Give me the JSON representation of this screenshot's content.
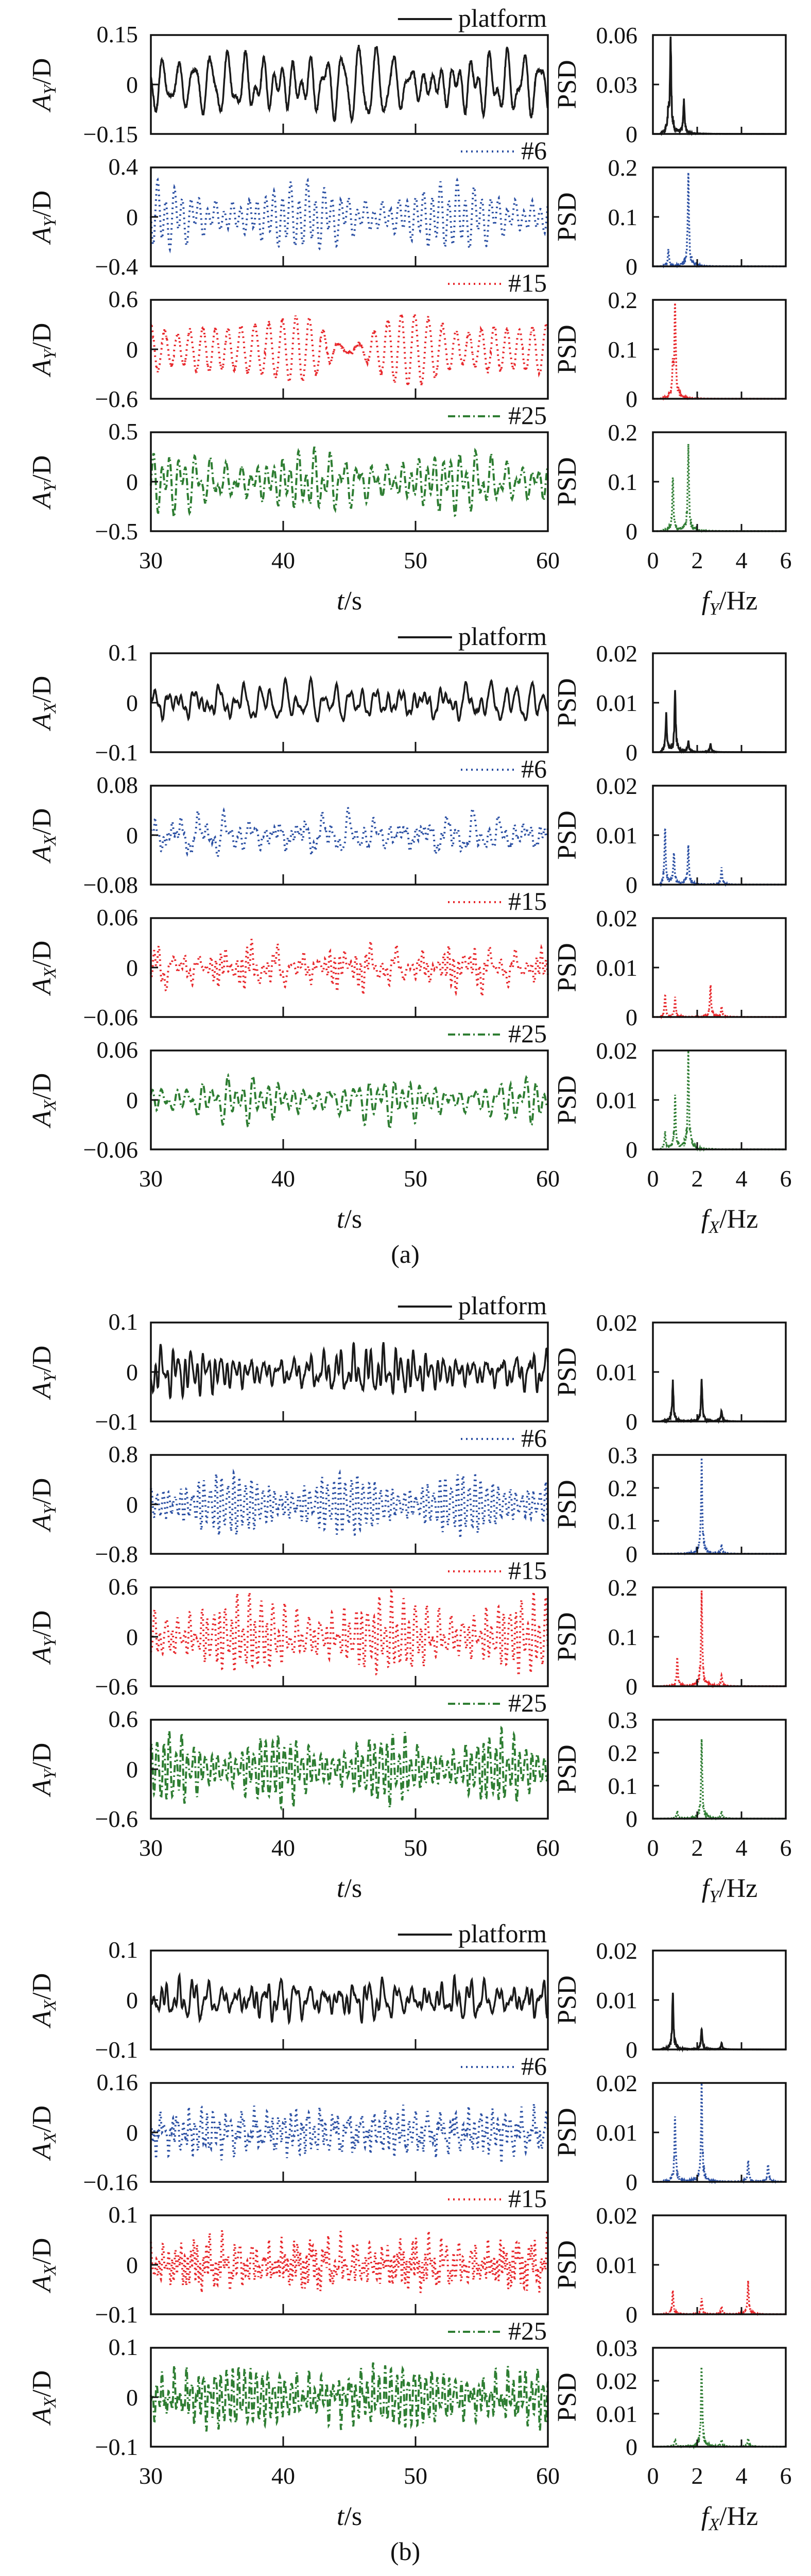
{
  "chart_data": [
    {
      "type": "line",
      "subfigure": "",
      "xlabel": {
        "main": "t",
        "sub": "",
        "rest": "/s"
      },
      "xlim": [
        30,
        60
      ],
      "xticks": [
        30,
        40,
        50,
        60
      ],
      "psd_xlabel": {
        "main": "f",
        "sub": "Y",
        "rest": "/Hz"
      },
      "psd_xlim": [
        0,
        6
      ],
      "psd_xticks": [
        0,
        2,
        4,
        6
      ],
      "ylabel": {
        "main": "A",
        "sub": "Y",
        "rest": "/D"
      },
      "psd_ylabel": "PSD",
      "panels": [
        {
          "legend": "platform",
          "color": "#1a1a1a",
          "style": "solid",
          "ylim": [
            -0.15,
            0.15
          ],
          "yticks": [
            "0.15",
            "0",
            "−0.15"
          ],
          "amplitude": 0.12,
          "psd_ylim": [
            0,
            0.06
          ],
          "psd_yticks": [
            "0.06",
            "0.03",
            "0"
          ],
          "psd_peaks": [
            [
              0.8,
              0.053
            ],
            [
              0.7,
              0.01
            ],
            [
              1.4,
              0.019
            ]
          ]
        },
        {
          "legend": "#6",
          "color": "#2a4fa3",
          "style": "dotted",
          "ylim": [
            -0.4,
            0.4
          ],
          "yticks": [
            "0.4",
            "0",
            "−0.4"
          ],
          "amplitude": 0.3,
          "psd_ylim": [
            0,
            0.2
          ],
          "psd_yticks": [
            "0.2",
            "0.1",
            "0"
          ],
          "psd_peaks": [
            [
              0.7,
              0.03
            ],
            [
              1.6,
              0.167
            ]
          ]
        },
        {
          "legend": "#15",
          "color": "#e8262a",
          "style": "dotted",
          "ylim": [
            -0.6,
            0.6
          ],
          "yticks": [
            "0.6",
            "0",
            "−0.6"
          ],
          "amplitude": 0.45,
          "psd_ylim": [
            0,
            0.2
          ],
          "psd_yticks": [
            "0.2",
            "0.1",
            "0"
          ],
          "psd_peaks": [
            [
              1.0,
              0.175
            ],
            [
              0.9,
              0.05
            ]
          ]
        },
        {
          "legend": "#25",
          "color": "#2e7d32",
          "style": "dashdot",
          "ylim": [
            -0.5,
            0.5
          ],
          "yticks": [
            "0.5",
            "0",
            "−0.5"
          ],
          "amplitude": 0.35,
          "psd_ylim": [
            0,
            0.2
          ],
          "psd_yticks": [
            "0.2",
            "0.1",
            "0"
          ],
          "psd_peaks": [
            [
              0.9,
              0.1
            ],
            [
              1.6,
              0.155
            ]
          ]
        }
      ]
    },
    {
      "type": "line",
      "subfigure": "(a)",
      "xlabel": {
        "main": "t",
        "sub": "",
        "rest": "/s"
      },
      "xlim": [
        30,
        60
      ],
      "xticks": [
        30,
        40,
        50,
        60
      ],
      "psd_xlabel": {
        "main": "f",
        "sub": "X",
        "rest": "/Hz"
      },
      "psd_xlim": [
        0,
        6
      ],
      "psd_xticks": [
        0,
        2,
        4,
        6
      ],
      "ylabel": {
        "main": "A",
        "sub": "X",
        "rest": "/D"
      },
      "psd_ylabel": "PSD",
      "panels": [
        {
          "legend": "platform",
          "color": "#1a1a1a",
          "style": "solid",
          "ylim": [
            -0.1,
            0.1
          ],
          "yticks": [
            "0.1",
            "0",
            "−0.1"
          ],
          "amplitude": 0.05,
          "psd_ylim": [
            0,
            0.02
          ],
          "psd_yticks": [
            "0.02",
            "0.01",
            "0"
          ],
          "psd_peaks": [
            [
              0.6,
              0.007
            ],
            [
              1.0,
              0.011
            ],
            [
              1.6,
              0.002
            ],
            [
              2.6,
              0.0015
            ]
          ]
        },
        {
          "legend": "#6",
          "color": "#2a4fa3",
          "style": "dotted",
          "ylim": [
            -0.08,
            0.08
          ],
          "yticks": [
            "0.08",
            "0",
            "−0.08"
          ],
          "amplitude": 0.045,
          "psd_ylim": [
            0,
            0.02
          ],
          "psd_yticks": [
            "0.02",
            "0.01",
            "0"
          ],
          "psd_peaks": [
            [
              0.55,
              0.0105
            ],
            [
              0.95,
              0.006
            ],
            [
              1.6,
              0.007
            ],
            [
              3.1,
              0.003
            ]
          ]
        },
        {
          "legend": "#15",
          "color": "#e8262a",
          "style": "dotted",
          "ylim": [
            -0.06,
            0.06
          ],
          "yticks": [
            "0.06",
            "0",
            "−0.06"
          ],
          "amplitude": 0.035,
          "psd_ylim": [
            0,
            0.02
          ],
          "psd_yticks": [
            "0.02",
            "0.01",
            "0"
          ],
          "psd_peaks": [
            [
              0.55,
              0.004
            ],
            [
              1.0,
              0.0035
            ],
            [
              2.6,
              0.006
            ],
            [
              3.1,
              0.002
            ]
          ]
        },
        {
          "legend": "#25",
          "color": "#2e7d32",
          "style": "dashdot",
          "ylim": [
            -0.06,
            0.06
          ],
          "yticks": [
            "0.06",
            "0",
            "−0.06"
          ],
          "amplitude": 0.035,
          "psd_ylim": [
            0,
            0.02
          ],
          "psd_yticks": [
            "0.02",
            "0.01",
            "0"
          ],
          "psd_peaks": [
            [
              0.55,
              0.003
            ],
            [
              1.0,
              0.01
            ],
            [
              1.6,
              0.018
            ]
          ]
        }
      ]
    },
    {
      "type": "line",
      "subfigure": "",
      "xlabel": {
        "main": "t",
        "sub": "",
        "rest": "/s"
      },
      "xlim": [
        30,
        60
      ],
      "xticks": [
        30,
        40,
        50,
        60
      ],
      "psd_xlabel": {
        "main": "f",
        "sub": "Y",
        "rest": "/Hz"
      },
      "psd_xlim": [
        0,
        6
      ],
      "psd_xticks": [
        0,
        2,
        4,
        6
      ],
      "ylabel": {
        "main": "A",
        "sub": "Y",
        "rest": "/D"
      },
      "psd_ylabel": "PSD",
      "panels": [
        {
          "legend": "platform",
          "color": "#1a1a1a",
          "style": "solid",
          "ylim": [
            -0.1,
            0.1
          ],
          "yticks": [
            "0.1",
            "0",
            "−0.1"
          ],
          "amplitude": 0.06,
          "psd_ylim": [
            0,
            0.02
          ],
          "psd_yticks": [
            "0.02",
            "0.01",
            "0"
          ],
          "psd_peaks": [
            [
              0.9,
              0.0075
            ],
            [
              2.2,
              0.008
            ],
            [
              3.1,
              0.002
            ]
          ]
        },
        {
          "legend": "#6",
          "color": "#2a4fa3",
          "style": "dotted",
          "ylim": [
            -0.8,
            0.8
          ],
          "yticks": [
            "0.8",
            "0",
            "−0.8"
          ],
          "amplitude": 0.55,
          "psd_ylim": [
            0,
            0.3
          ],
          "psd_yticks": [
            "0.3",
            "0.2",
            "0.1",
            "0"
          ],
          "psd_peaks": [
            [
              2.2,
              0.25
            ],
            [
              3.1,
              0.025
            ]
          ]
        },
        {
          "legend": "#15",
          "color": "#e8262a",
          "style": "dotted",
          "ylim": [
            -0.6,
            0.6
          ],
          "yticks": [
            "0.6",
            "0",
            "−0.6"
          ],
          "amplitude": 0.55,
          "psd_ylim": [
            0,
            0.2
          ],
          "psd_yticks": [
            "0.2",
            "0.1",
            "0"
          ],
          "psd_peaks": [
            [
              1.1,
              0.05
            ],
            [
              2.2,
              0.165
            ],
            [
              3.1,
              0.02
            ]
          ]
        },
        {
          "legend": "#25",
          "color": "#2e7d32",
          "style": "dashdot",
          "ylim": [
            -0.6,
            0.6
          ],
          "yticks": [
            "0.6",
            "0",
            "−0.6"
          ],
          "amplitude": 0.5,
          "psd_ylim": [
            0,
            0.3
          ],
          "psd_yticks": [
            "0.3",
            "0.2",
            "0.1",
            "0"
          ],
          "psd_peaks": [
            [
              1.1,
              0.02
            ],
            [
              2.2,
              0.21
            ],
            [
              3.1,
              0.02
            ]
          ]
        }
      ]
    },
    {
      "type": "line",
      "subfigure": "(b)",
      "xlabel": {
        "main": "t",
        "sub": "",
        "rest": "/s"
      },
      "xlim": [
        30,
        60
      ],
      "xticks": [
        30,
        40,
        50,
        60
      ],
      "psd_xlabel": {
        "main": "f",
        "sub": "X",
        "rest": "/Hz"
      },
      "psd_xlim": [
        0,
        6
      ],
      "psd_xticks": [
        0,
        2,
        4,
        6
      ],
      "ylabel": {
        "main": "A",
        "sub": "X",
        "rest": "/D"
      },
      "psd_ylabel": "PSD",
      "panels": [
        {
          "legend": "platform",
          "color": "#1a1a1a",
          "style": "solid",
          "ylim": [
            -0.1,
            0.1
          ],
          "yticks": [
            "0.1",
            "0",
            "−0.1"
          ],
          "amplitude": 0.05,
          "psd_ylim": [
            0,
            0.02
          ],
          "psd_yticks": [
            "0.02",
            "0.01",
            "0"
          ],
          "psd_peaks": [
            [
              0.9,
              0.0105
            ],
            [
              2.2,
              0.004
            ],
            [
              3.1,
              0.0012
            ]
          ]
        },
        {
          "legend": "#6",
          "color": "#2a4fa3",
          "style": "dotted",
          "ylim": [
            -0.16,
            0.16
          ],
          "yticks": [
            "0.16",
            "0",
            "−0.16"
          ],
          "amplitude": 0.1,
          "psd_ylim": [
            0,
            0.02
          ],
          "psd_yticks": [
            "0.02",
            "0.01",
            "0"
          ],
          "psd_peaks": [
            [
              1.0,
              0.012
            ],
            [
              2.2,
              0.018
            ],
            [
              4.3,
              0.004
            ],
            [
              5.2,
              0.0035
            ]
          ]
        },
        {
          "legend": "#15",
          "color": "#e8262a",
          "style": "dotted",
          "ylim": [
            -0.1,
            0.1
          ],
          "yticks": [
            "0.1",
            "0",
            "−0.1"
          ],
          "amplitude": 0.07,
          "psd_ylim": [
            0,
            0.02
          ],
          "psd_yticks": [
            "0.02",
            "0.01",
            "0"
          ],
          "psd_peaks": [
            [
              0.9,
              0.0045
            ],
            [
              2.2,
              0.003
            ],
            [
              3.1,
              0.0015
            ],
            [
              4.3,
              0.006
            ]
          ]
        },
        {
          "legend": "#25",
          "color": "#2e7d32",
          "style": "dashdot",
          "ylim": [
            -0.1,
            0.1
          ],
          "yticks": [
            "0.1",
            "0",
            "−0.1"
          ],
          "amplitude": 0.07,
          "psd_ylim": [
            0,
            0.03
          ],
          "psd_yticks": [
            "0.03",
            "0.02",
            "0.01",
            "0"
          ],
          "psd_peaks": [
            [
              1.0,
              0.002
            ],
            [
              2.2,
              0.0225
            ],
            [
              3.1,
              0.002
            ],
            [
              4.3,
              0.0025
            ]
          ]
        }
      ]
    }
  ]
}
